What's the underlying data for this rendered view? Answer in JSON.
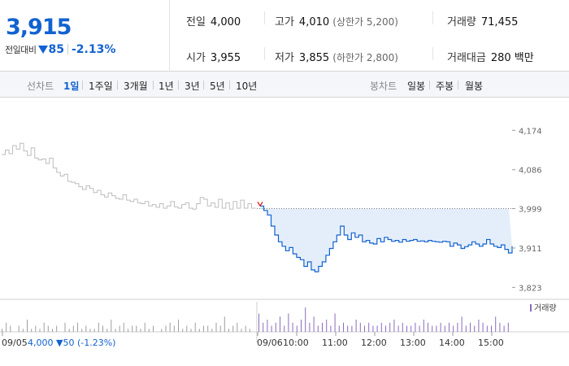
{
  "quote": {
    "price": "3,915",
    "change_label": "전일대비",
    "change_amount": "85",
    "change_rate": "-2.13%",
    "prev_close": {
      "label": "전일",
      "value": "4,000"
    },
    "open": {
      "label": "시가",
      "value": "3,955"
    },
    "high": {
      "label": "고가",
      "value": "4,010",
      "limit": "(상한가 5,200)"
    },
    "low": {
      "label": "저가",
      "value": "3,855",
      "limit": "(하한가 2,800)"
    },
    "volume": {
      "label": "거래량",
      "value": "71,455"
    },
    "amount": {
      "label": "거래대금",
      "value": "280 백만"
    }
  },
  "tabs": {
    "line_label": "선차트",
    "line_periods": [
      "1일",
      "1주일",
      "3개월",
      "1년",
      "3년",
      "5년",
      "10년"
    ],
    "active_period": "1일",
    "candle_label": "봉차트",
    "candle_periods": [
      "일봉",
      "주봉",
      "월봉"
    ]
  },
  "colors": {
    "rise": "#d60000",
    "fall": "#1262d0",
    "prev_day_line": "#bdbdbd",
    "fill": "#e4eefb",
    "volume": "#9e9e9e",
    "volume_today": "#8a6bbd"
  },
  "chart_data": {
    "type": "line",
    "y_ticks": [
      "4,174",
      "4,086",
      "3,999",
      "3,911",
      "3,823"
    ],
    "y_tick_values": [
      4174,
      4086,
      3999,
      3911,
      3823
    ],
    "ylim": [
      3800,
      4200
    ],
    "reference_price": 3999,
    "x_labels": [
      "09/05",
      "09/06",
      "10:00",
      "11:00",
      "12:00",
      "13:00",
      "14:00",
      "15:00"
    ],
    "prev_day_annotation": "4,000 ▼50 (-1.23%)",
    "volume_label": "거래량",
    "series": [
      {
        "name": "09/05",
        "values": [
          4120,
          4130,
          4122,
          4140,
          4132,
          4145,
          4128,
          4118,
          4135,
          4112,
          4108,
          4110,
          4100,
          4112,
          4090,
          4080,
          4072,
          4076,
          4060,
          4058,
          4055,
          4048,
          4042,
          4050,
          4044,
          4035,
          4040,
          4030,
          4025,
          4034,
          4028,
          4022,
          4020,
          4030,
          4018,
          4015,
          4020,
          4012,
          4010,
          4015,
          4005,
          4008,
          4002,
          4010,
          4000,
          4005,
          4015,
          4003,
          4000,
          4008,
          4012,
          4000,
          3998,
          4010,
          4024,
          4020,
          4005,
          4012,
          4002,
          4020,
          4000,
          4012,
          3998,
          4015,
          4000,
          4018,
          4000,
          4010,
          4000,
          3999
        ]
      },
      {
        "name": "09/06",
        "values": [
          4005,
          3995,
          3985,
          3960,
          3940,
          3925,
          3915,
          3905,
          3912,
          3898,
          3890,
          3885,
          3870,
          3880,
          3862,
          3858,
          3870,
          3880,
          3895,
          3910,
          3925,
          3940,
          3960,
          3940,
          3930,
          3945,
          3935,
          3940,
          3925,
          3928,
          3922,
          3920,
          3932,
          3925,
          3935,
          3930,
          3926,
          3928,
          3924,
          3930,
          3926,
          3928,
          3930,
          3926,
          3927,
          3925,
          3928,
          3926,
          3925,
          3924,
          3926,
          3925,
          3915,
          3922,
          3918,
          3910,
          3914,
          3918,
          3925,
          3920,
          3915,
          3920,
          3930,
          3920,
          3915,
          3912,
          3918,
          3908,
          3900,
          3915
        ]
      }
    ],
    "volume_prev": [
      1,
      3,
      2,
      0,
      2,
      1,
      4,
      1,
      2,
      1,
      3,
      2,
      1,
      2,
      0,
      3,
      1,
      2,
      3,
      1,
      2,
      1,
      1,
      3,
      2,
      1,
      4,
      1,
      2,
      3,
      1,
      2,
      2,
      1,
      3,
      1,
      2,
      0,
      1,
      2,
      3,
      2,
      4,
      1,
      2,
      1,
      3,
      1,
      2,
      2,
      1,
      3,
      2,
      5,
      1,
      2,
      3,
      1,
      2,
      1
    ],
    "volume_today": [
      6,
      3,
      4,
      2,
      3,
      5,
      2,
      6,
      3,
      2,
      4,
      8,
      3,
      5,
      2,
      3,
      4,
      2,
      6,
      2,
      3,
      2,
      2,
      4,
      3,
      2,
      3,
      2,
      2,
      3,
      2,
      3,
      4,
      2,
      3,
      2,
      2,
      3,
      2,
      4,
      3,
      2,
      2,
      3,
      2,
      3,
      2,
      3,
      5,
      2,
      3,
      2,
      4,
      3,
      2,
      2,
      5,
      3,
      2,
      3
    ]
  }
}
